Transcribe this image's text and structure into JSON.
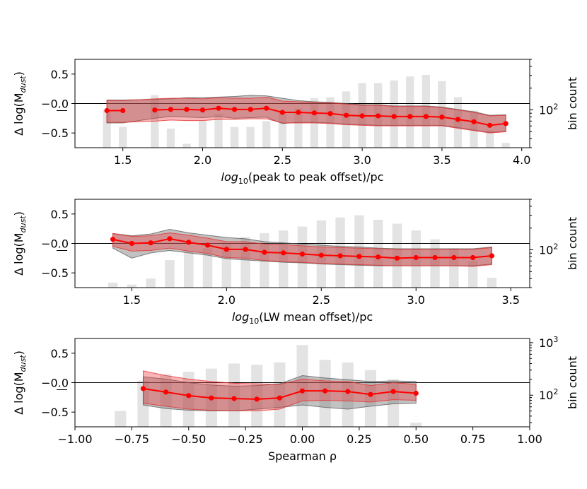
{
  "chart_data": [
    {
      "type": "bar+line",
      "title": "",
      "xlabel_prefix": "log",
      "xlabel_sub": "10",
      "xlabel_rest": "(peak to peak offset)/pc",
      "ylabel": "Δ log(M",
      "ylabel_sub": "dust",
      "ylabel_end": ")",
      "y2label": "bin count",
      "xlim": [
        1.2,
        4.05
      ],
      "ylim": [
        -0.75,
        0.75
      ],
      "y2lim_log": [
        30,
        500
      ],
      "xticks": [
        1.5,
        2.0,
        2.5,
        3.0,
        3.5,
        4.0
      ],
      "xtick_labels": [
        "1.5",
        "2.0",
        "2.5",
        "3.0",
        "3.5",
        "4.0"
      ],
      "yticks": [
        0.5,
        0.0,
        -0.5
      ],
      "ytick_labels": [
        "0.5",
        "−0.0",
        "−0.5"
      ],
      "y2ticks": [
        100
      ],
      "y2tick_labels": [
        "10",
        "2"
      ],
      "bars": {
        "x": [
          1.4,
          1.5,
          1.7,
          1.8,
          1.9,
          2.0,
          2.1,
          2.2,
          2.3,
          2.4,
          2.5,
          2.6,
          2.7,
          2.8,
          2.9,
          3.0,
          3.1,
          3.2,
          3.3,
          3.4,
          3.5,
          3.6,
          3.7,
          3.8,
          3.9
        ],
        "counts": [
          100,
          58,
          160,
          55,
          34,
          70,
          88,
          58,
          58,
          70,
          94,
          105,
          145,
          150,
          180,
          235,
          235,
          255,
          290,
          305,
          250,
          150,
          98,
          52,
          35
        ]
      },
      "series": [
        {
          "name": "median",
          "x": [
            1.4,
            1.5,
            1.7,
            1.8,
            1.9,
            2.0,
            2.1,
            2.2,
            2.3,
            2.4,
            2.5,
            2.6,
            2.7,
            2.8,
            2.9,
            3.0,
            3.1,
            3.2,
            3.3,
            3.4,
            3.5,
            3.6,
            3.7,
            3.8,
            3.9
          ],
          "y": [
            -0.12,
            -0.12,
            -0.11,
            -0.1,
            -0.1,
            -0.11,
            -0.08,
            -0.1,
            -0.1,
            -0.08,
            -0.15,
            -0.15,
            -0.16,
            -0.17,
            -0.2,
            -0.21,
            -0.21,
            -0.22,
            -0.22,
            -0.22,
            -0.23,
            -0.27,
            -0.31,
            -0.37,
            -0.34
          ],
          "red_low": [
            -0.32,
            -0.32,
            -0.3,
            -0.28,
            -0.29,
            -0.29,
            -0.27,
            -0.27,
            -0.26,
            -0.26,
            -0.33,
            -0.33,
            -0.33,
            -0.34,
            -0.36,
            -0.37,
            -0.38,
            -0.38,
            -0.38,
            -0.38,
            -0.38,
            -0.42,
            -0.46,
            -0.5,
            -0.48
          ],
          "red_high": [
            0.05,
            0.05,
            0.08,
            0.09,
            0.09,
            0.08,
            0.1,
            0.09,
            0.09,
            0.11,
            0.04,
            0.03,
            0.02,
            0.01,
            -0.01,
            -0.03,
            -0.03,
            -0.05,
            -0.05,
            -0.05,
            -0.07,
            -0.11,
            -0.15,
            -0.21,
            -0.2
          ],
          "grey_low": [
            -0.33,
            -0.33,
            -0.25,
            -0.22,
            -0.23,
            -0.24,
            -0.22,
            -0.25,
            -0.24,
            -0.23,
            -0.34,
            -0.32,
            -0.32,
            -0.33,
            -0.35,
            -0.36,
            -0.37,
            -0.37,
            -0.37,
            -0.37,
            -0.37,
            -0.41,
            -0.45,
            -0.49,
            -0.47
          ],
          "grey_high": [
            0.06,
            0.06,
            0.07,
            0.08,
            0.1,
            0.1,
            0.11,
            0.12,
            0.14,
            0.13,
            0.09,
            0.05,
            0.03,
            0.02,
            0.0,
            -0.02,
            -0.02,
            -0.04,
            -0.04,
            -0.04,
            -0.06,
            -0.1,
            -0.14,
            -0.2,
            -0.19
          ]
        }
      ]
    },
    {
      "type": "bar+line",
      "title": "",
      "xlabel_prefix": "log",
      "xlabel_sub": "10",
      "xlabel_rest": "(LW mean offset)/pc",
      "ylabel": "Δ log(M",
      "ylabel_sub": "dust",
      "ylabel_end": ")",
      "y2label": "bin count",
      "xlim": [
        1.2,
        3.6
      ],
      "ylim": [
        -0.75,
        0.75
      ],
      "y2lim_log": [
        30,
        500
      ],
      "xticks": [
        1.5,
        2.0,
        2.5,
        3.0,
        3.5
      ],
      "xtick_labels": [
        "1.5",
        "2.0",
        "2.5",
        "3.0",
        "3.5"
      ],
      "yticks": [
        0.5,
        0.0,
        -0.5
      ],
      "ytick_labels": [
        "0.5",
        "−0.0",
        "−0.5"
      ],
      "y2ticks": [
        100
      ],
      "y2tick_labels": [
        "10",
        "2"
      ],
      "bars": {
        "x": [
          1.4,
          1.5,
          1.6,
          1.7,
          1.8,
          1.9,
          2.0,
          2.1,
          2.2,
          2.3,
          2.4,
          2.5,
          2.6,
          2.7,
          2.8,
          2.9,
          3.0,
          3.1,
          3.2,
          3.3,
          3.4
        ],
        "counts": [
          35,
          33,
          40,
          72,
          94,
          105,
          125,
          150,
          170,
          185,
          210,
          255,
          280,
          300,
          260,
          230,
          185,
          140,
          105,
          70,
          41
        ]
      },
      "series": [
        {
          "name": "median",
          "x": [
            1.4,
            1.5,
            1.6,
            1.7,
            1.8,
            1.9,
            2.0,
            2.1,
            2.2,
            2.3,
            2.4,
            2.5,
            2.6,
            2.7,
            2.8,
            2.9,
            3.0,
            3.1,
            3.2,
            3.3,
            3.4
          ],
          "y": [
            0.07,
            0.0,
            0.01,
            0.08,
            0.02,
            -0.03,
            -0.1,
            -0.1,
            -0.15,
            -0.16,
            -0.18,
            -0.2,
            -0.21,
            -0.22,
            -0.23,
            -0.25,
            -0.24,
            -0.24,
            -0.24,
            -0.24,
            -0.21
          ],
          "red_low": [
            -0.05,
            -0.13,
            -0.12,
            -0.08,
            -0.13,
            -0.17,
            -0.24,
            -0.25,
            -0.29,
            -0.31,
            -0.32,
            -0.34,
            -0.35,
            -0.36,
            -0.37,
            -0.38,
            -0.38,
            -0.38,
            -0.38,
            -0.39,
            -0.36
          ],
          "red_high": [
            0.17,
            0.12,
            0.13,
            0.18,
            0.14,
            0.09,
            0.03,
            0.03,
            -0.01,
            -0.02,
            -0.04,
            -0.06,
            -0.07,
            -0.08,
            -0.09,
            -0.1,
            -0.1,
            -0.1,
            -0.1,
            -0.1,
            -0.07
          ],
          "grey_low": [
            -0.08,
            -0.25,
            -0.16,
            -0.12,
            -0.16,
            -0.2,
            -0.26,
            -0.28,
            -0.3,
            -0.32,
            -0.33,
            -0.35,
            -0.36,
            -0.37,
            -0.38,
            -0.38,
            -0.38,
            -0.38,
            -0.38,
            -0.38,
            -0.35
          ],
          "grey_high": [
            0.17,
            0.13,
            0.16,
            0.24,
            0.18,
            0.14,
            0.1,
            0.08,
            0.03,
            0.01,
            -0.01,
            -0.03,
            -0.05,
            -0.06,
            -0.08,
            -0.09,
            -0.09,
            -0.09,
            -0.09,
            -0.09,
            -0.06
          ]
        }
      ]
    },
    {
      "type": "bar+line",
      "title": "",
      "xlabel": "Spearman ρ",
      "ylabel": "Δ log(M",
      "ylabel_sub": "dust",
      "ylabel_end": ")",
      "y2label": "bin count",
      "xlim": [
        -1.0,
        1.0
      ],
      "ylim": [
        -0.75,
        0.75
      ],
      "y2lim_log": [
        25,
        1200
      ],
      "xticks": [
        -1.0,
        -0.75,
        -0.5,
        -0.25,
        0.0,
        0.25,
        0.5,
        0.75,
        1.0
      ],
      "xtick_labels": [
        "−1.00",
        "−0.75",
        "−0.50",
        "−0.25",
        "0.00",
        "0.25",
        "0.50",
        "0.75",
        "1.00"
      ],
      "yticks": [
        0.5,
        0.0,
        -0.5
      ],
      "ytick_labels": [
        "0.5",
        "−0.0",
        "−0.5"
      ],
      "y2ticks": [
        100,
        1000
      ],
      "y2tick_labels": [
        "10",
        "2",
        "10",
        "3"
      ],
      "bars": {
        "x": [
          -0.8,
          -0.7,
          -0.6,
          -0.5,
          -0.4,
          -0.3,
          -0.2,
          -0.1,
          0.0,
          0.1,
          0.2,
          0.3,
          0.4,
          0.5
        ],
        "counts": [
          50,
          190,
          250,
          280,
          320,
          400,
          380,
          420,
          900,
          470,
          420,
          300,
          200,
          30
        ]
      },
      "series": [
        {
          "name": "median",
          "x": [
            -0.7,
            -0.6,
            -0.5,
            -0.4,
            -0.3,
            -0.2,
            -0.1,
            0.0,
            0.1,
            0.2,
            0.3,
            0.4,
            0.5
          ],
          "y": [
            -0.1,
            -0.16,
            -0.22,
            -0.26,
            -0.27,
            -0.28,
            -0.26,
            -0.14,
            -0.14,
            -0.15,
            -0.2,
            -0.15,
            -0.18
          ],
          "red_low": [
            -0.35,
            -0.4,
            -0.45,
            -0.47,
            -0.48,
            -0.48,
            -0.45,
            -0.31,
            -0.3,
            -0.31,
            -0.33,
            -0.29,
            -0.3
          ],
          "red_high": [
            0.2,
            0.12,
            0.06,
            0.02,
            -0.01,
            -0.02,
            -0.03,
            0.06,
            0.03,
            0.02,
            -0.05,
            0.0,
            -0.03
          ],
          "grey_low": [
            -0.38,
            -0.44,
            -0.47,
            -0.48,
            -0.48,
            -0.45,
            -0.42,
            -0.38,
            -0.42,
            -0.45,
            -0.4,
            -0.36,
            -0.35
          ],
          "grey_high": [
            0.1,
            0.06,
            0.0,
            -0.04,
            -0.06,
            -0.05,
            -0.02,
            0.12,
            0.08,
            0.05,
            0.02,
            0.03,
            0.02
          ]
        }
      ]
    }
  ]
}
